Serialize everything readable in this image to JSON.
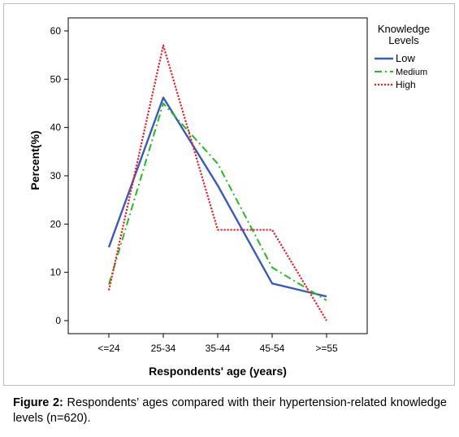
{
  "chart_data": {
    "type": "line",
    "categories": [
      "<=24",
      "25-34",
      "35-44",
      "45-54",
      ">=55"
    ],
    "series": [
      {
        "name": "Low",
        "values": [
          15.2,
          46.2,
          28.0,
          7.7,
          5.0
        ],
        "color": "#3b5bb8",
        "style": "solid"
      },
      {
        "name": "Medium",
        "values": [
          7.5,
          45.0,
          32.5,
          11.0,
          4.2
        ],
        "color": "#22bb22",
        "style": "dashdot"
      },
      {
        "name": "High",
        "values": [
          6.3,
          57.0,
          18.8,
          18.8,
          0.0
        ],
        "color": "#e8202a",
        "style": "dotted"
      }
    ],
    "xlabel": "Respondents' age (years)",
    "ylabel": "Percent(%)",
    "ylim": [
      0,
      60
    ],
    "yticks": [
      "0",
      "10",
      "20",
      "30",
      "40",
      "50",
      "60"
    ],
    "legend_title": [
      "Knowledge",
      "Levels"
    ],
    "legend_position": "right",
    "grid": false
  },
  "caption": {
    "label": "Figure 2:",
    "text": " Respondents’ ages compared with their hypertension-related knowledge levels (n=620)."
  }
}
